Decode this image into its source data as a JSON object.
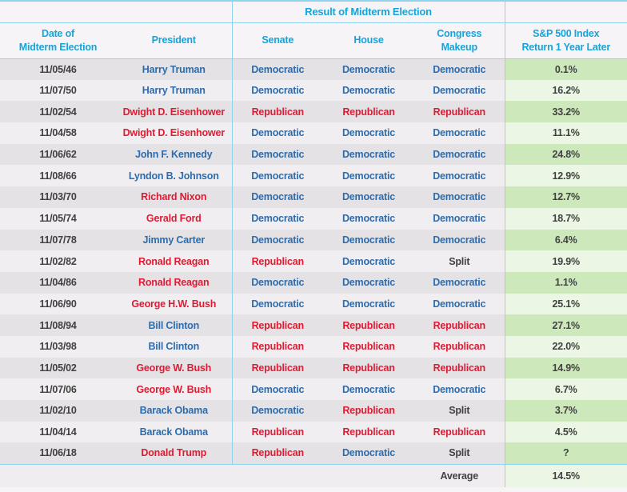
{
  "chart_data": {
    "type": "table",
    "group_header": "Result of Midterm Election",
    "columns": [
      {
        "line1": "Date of",
        "line2": "Midterm Election"
      },
      {
        "line1": "President",
        "line2": ""
      },
      {
        "line1": "Senate",
        "line2": ""
      },
      {
        "line1": "House",
        "line2": ""
      },
      {
        "line1": "Congress",
        "line2": "Makeup"
      },
      {
        "line1": "S&P 500 Index",
        "line2": "Return 1 Year Later"
      }
    ],
    "rows": [
      {
        "date": "11/05/46",
        "president": "Harry Truman",
        "president_party": "D",
        "senate": "Democratic",
        "house": "Democratic",
        "congress_makeup": "Democratic",
        "sp500_return_1yr": "0.1%"
      },
      {
        "date": "11/07/50",
        "president": "Harry Truman",
        "president_party": "D",
        "senate": "Democratic",
        "house": "Democratic",
        "congress_makeup": "Democratic",
        "sp500_return_1yr": "16.2%"
      },
      {
        "date": "11/02/54",
        "president": "Dwight D. Eisenhower",
        "president_party": "R",
        "senate": "Republican",
        "house": "Republican",
        "congress_makeup": "Republican",
        "sp500_return_1yr": "33.2%"
      },
      {
        "date": "11/04/58",
        "president": "Dwight D. Eisenhower",
        "president_party": "R",
        "senate": "Democratic",
        "house": "Democratic",
        "congress_makeup": "Democratic",
        "sp500_return_1yr": "11.1%"
      },
      {
        "date": "11/06/62",
        "president": "John F. Kennedy",
        "president_party": "D",
        "senate": "Democratic",
        "house": "Democratic",
        "congress_makeup": "Democratic",
        "sp500_return_1yr": "24.8%"
      },
      {
        "date": "11/08/66",
        "president": "Lyndon B. Johnson",
        "president_party": "D",
        "senate": "Democratic",
        "house": "Democratic",
        "congress_makeup": "Democratic",
        "sp500_return_1yr": "12.9%"
      },
      {
        "date": "11/03/70",
        "president": "Richard Nixon",
        "president_party": "R",
        "senate": "Democratic",
        "house": "Democratic",
        "congress_makeup": "Democratic",
        "sp500_return_1yr": "12.7%"
      },
      {
        "date": "11/05/74",
        "president": "Gerald Ford",
        "president_party": "R",
        "senate": "Democratic",
        "house": "Democratic",
        "congress_makeup": "Democratic",
        "sp500_return_1yr": "18.7%"
      },
      {
        "date": "11/07/78",
        "president": "Jimmy Carter",
        "president_party": "D",
        "senate": "Democratic",
        "house": "Democratic",
        "congress_makeup": "Democratic",
        "sp500_return_1yr": "6.4%"
      },
      {
        "date": "11/02/82",
        "president": "Ronald Reagan",
        "president_party": "R",
        "senate": "Republican",
        "house": "Democratic",
        "congress_makeup": "Split",
        "sp500_return_1yr": "19.9%"
      },
      {
        "date": "11/04/86",
        "president": "Ronald Reagan",
        "president_party": "R",
        "senate": "Democratic",
        "house": "Democratic",
        "congress_makeup": "Democratic",
        "sp500_return_1yr": "1.1%"
      },
      {
        "date": "11/06/90",
        "president": "George H.W. Bush",
        "president_party": "R",
        "senate": "Democratic",
        "house": "Democratic",
        "congress_makeup": "Democratic",
        "sp500_return_1yr": "25.1%"
      },
      {
        "date": "11/08/94",
        "president": "Bill Clinton",
        "president_party": "D",
        "senate": "Republican",
        "house": "Republican",
        "congress_makeup": "Republican",
        "sp500_return_1yr": "27.1%"
      },
      {
        "date": "11/03/98",
        "president": "Bill Clinton",
        "president_party": "D",
        "senate": "Republican",
        "house": "Republican",
        "congress_makeup": "Republican",
        "sp500_return_1yr": "22.0%"
      },
      {
        "date": "11/05/02",
        "president": "George W. Bush",
        "president_party": "R",
        "senate": "Republican",
        "house": "Republican",
        "congress_makeup": "Republican",
        "sp500_return_1yr": "14.9%"
      },
      {
        "date": "11/07/06",
        "president": "George W. Bush",
        "president_party": "R",
        "senate": "Democratic",
        "house": "Democratic",
        "congress_makeup": "Democratic",
        "sp500_return_1yr": "6.7%"
      },
      {
        "date": "11/02/10",
        "president": "Barack Obama",
        "president_party": "D",
        "senate": "Democratic",
        "house": "Republican",
        "congress_makeup": "Split",
        "sp500_return_1yr": "3.7%"
      },
      {
        "date": "11/04/14",
        "president": "Barack Obama",
        "president_party": "D",
        "senate": "Republican",
        "house": "Republican",
        "congress_makeup": "Republican",
        "sp500_return_1yr": "4.5%"
      },
      {
        "date": "11/06/18",
        "president": "Donald Trump",
        "president_party": "R",
        "senate": "Republican",
        "house": "Democratic",
        "congress_makeup": "Split",
        "sp500_return_1yr": "?"
      }
    ],
    "footer": {
      "label": "Average",
      "value": "14.5%"
    }
  },
  "colors": {
    "header_cyan": "#14a5dc",
    "grid_cyan": "#8fd3ee",
    "democratic_blue": "#2d6cad",
    "republican_red": "#e11a33",
    "text_dark": "#414141",
    "row_gray_dark": "#e4e2e4",
    "row_gray_light": "#f0eef0",
    "return_green_dark": "#cde9bc",
    "return_green_light": "#ebf6e4"
  }
}
